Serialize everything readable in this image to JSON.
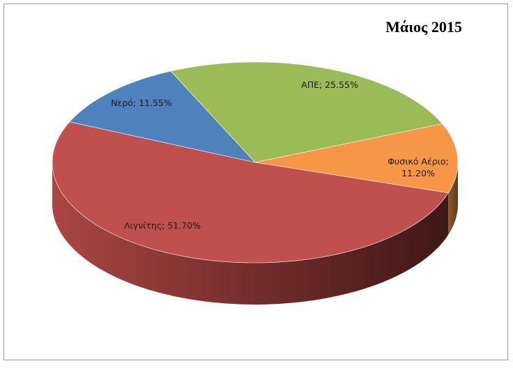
{
  "chart_data": {
    "type": "pie",
    "title": "Μάιος 2015",
    "three_d": true,
    "slices": [
      {
        "label": "ΑΠΕ",
        "value": 25.55,
        "display": [
          "ΑΠΕ; 25.55%"
        ],
        "color": "#9bbb59"
      },
      {
        "label": "Φυσικό Αέριο",
        "value": 11.2,
        "display": [
          "Φυσικό Αέριο;",
          "11.20%"
        ],
        "color": "#f79646"
      },
      {
        "label": "Λιγνίτης",
        "value": 51.7,
        "display": [
          "Λιγνίτης; 51.70%"
        ],
        "color": "#c0504d"
      },
      {
        "label": "Νερό",
        "value": 11.55,
        "display": [
          "Νερό; 11.55%"
        ],
        "color": "#4f81bd"
      }
    ]
  }
}
